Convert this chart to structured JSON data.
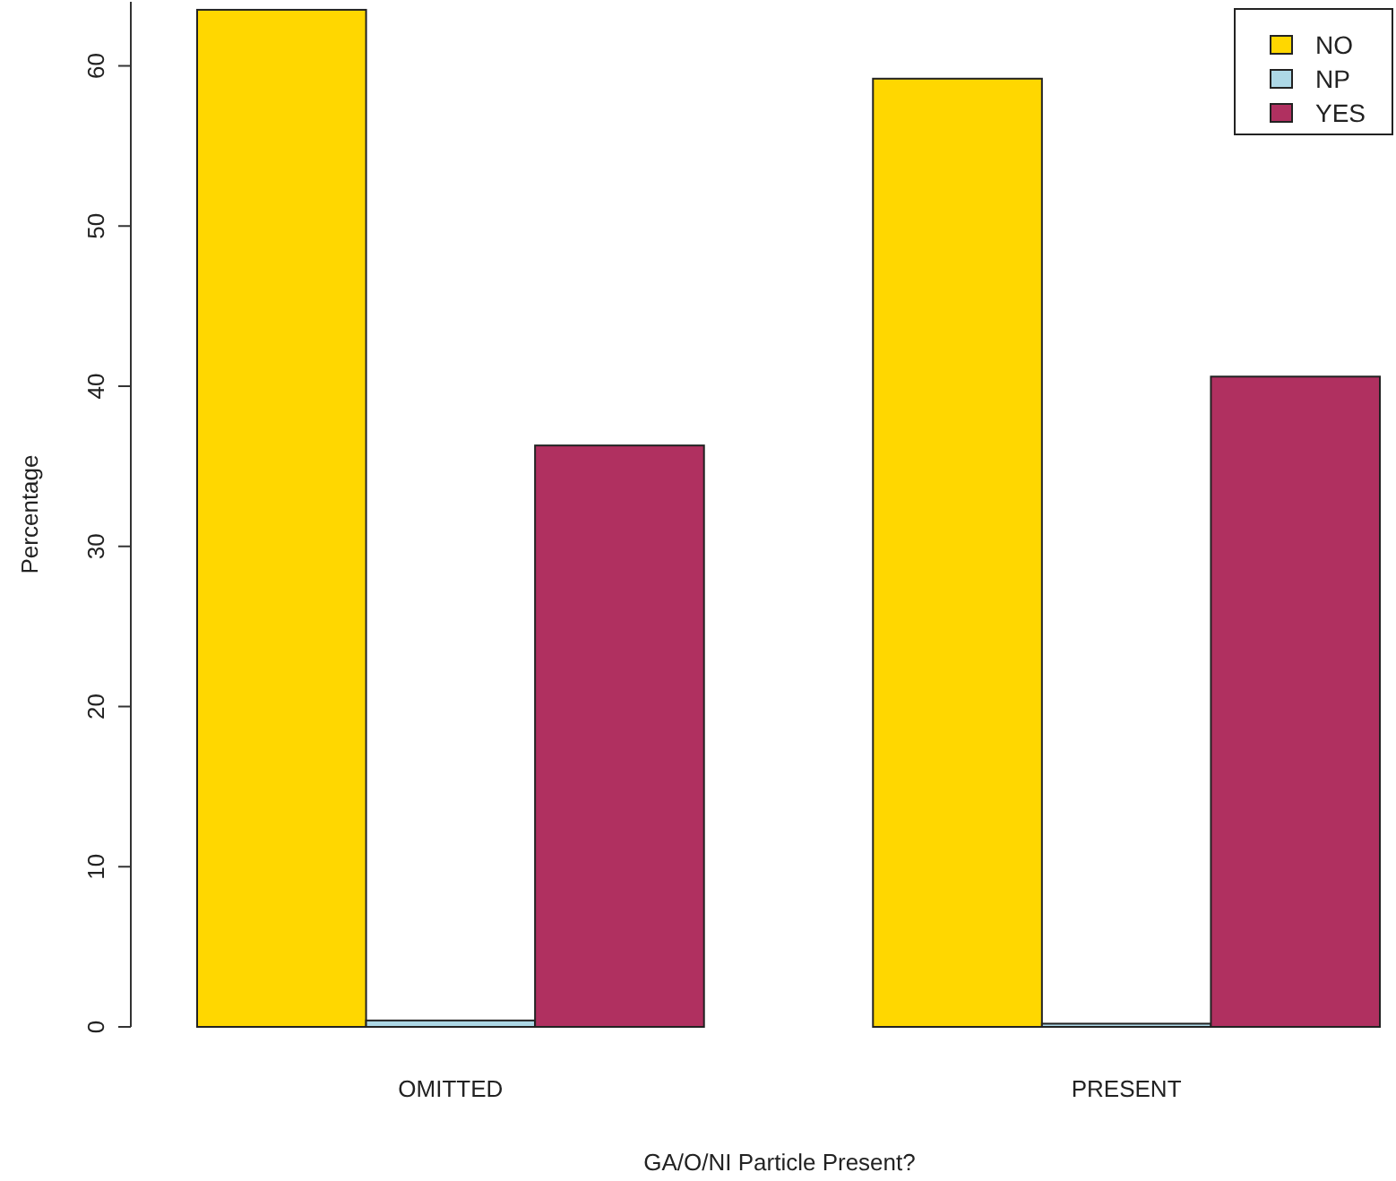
{
  "chart_data": {
    "type": "bar",
    "xlabel": "GA/O/NI Particle Present?",
    "ylabel": "Percentage",
    "categories": [
      "OMITTED",
      "PRESENT"
    ],
    "series": [
      {
        "name": "NO",
        "color": "#ffd700",
        "values": [
          63.5,
          59.2
        ]
      },
      {
        "name": "NP",
        "color": "#add8e6",
        "values": [
          0.4,
          0.2
        ]
      },
      {
        "name": "YES",
        "color": "#b03060",
        "values": [
          36.3,
          40.6
        ]
      }
    ],
    "ylim": [
      0,
      64
    ],
    "yticks": [
      0,
      10,
      20,
      30,
      40,
      50,
      60
    ],
    "legend": "top right",
    "grid": false
  }
}
